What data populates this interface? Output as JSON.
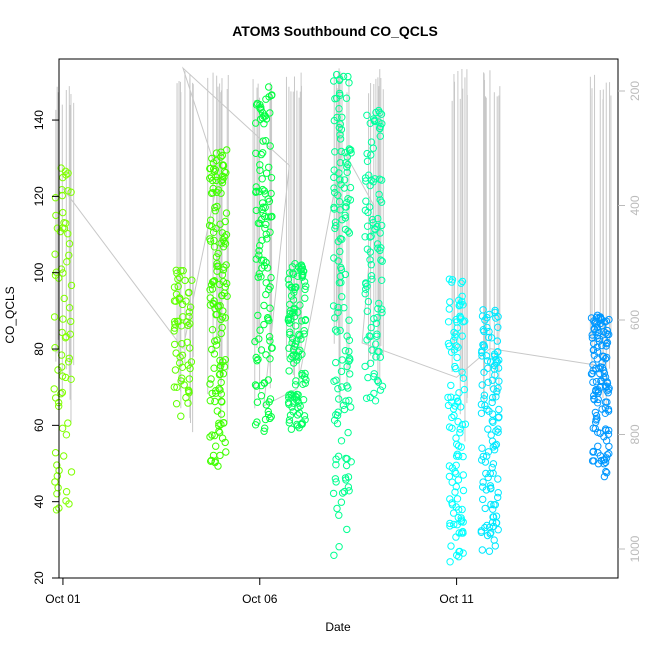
{
  "chart_data": {
    "type": "scatter",
    "title": "ATOM3 Southbound CO_QCLS",
    "xlabel": "Date",
    "ylabel": "CO_QCLS",
    "xlim": [
      -0.1,
      14.1
    ],
    "ylim": [
      20,
      156
    ],
    "x_unit": "days since Oct 01",
    "x_ticks": [
      {
        "value": 0,
        "label": "Oct 01"
      },
      {
        "value": 5,
        "label": "Oct 06"
      },
      {
        "value": 10,
        "label": "Oct 11"
      }
    ],
    "y_ticks": [
      20,
      40,
      60,
      80,
      100,
      120,
      140
    ],
    "y2_label": "",
    "y2_ticks": [
      200,
      400,
      600,
      800,
      1000
    ],
    "y2_note": "pressure axis drawn in light gray, increasing downward",
    "grid": false,
    "legend": "none",
    "point_colors": [
      "#80ff00",
      "#40ff00",
      "#00ff40",
      "#00ff80",
      "#00ffc0",
      "#00ffff",
      "#00c0ff",
      "#0090ff"
    ],
    "line_color": "#c8c8c8",
    "clusters": [
      {
        "x": 0.0,
        "y_min": 36,
        "y_max": 128,
        "n": 70,
        "color": "#80ff00",
        "y2_top": 180,
        "y2_bottom": 800
      },
      {
        "x": 3.05,
        "y_min": 62,
        "y_max": 102,
        "n": 60,
        "color": "#60ff00",
        "y2_top": 160,
        "y2_bottom": 800
      },
      {
        "x": 3.95,
        "y_min": 49,
        "y_max": 133,
        "n": 150,
        "color": "#40ff00",
        "y2_top": 160,
        "y2_bottom": 780
      },
      {
        "x": 5.1,
        "y_min": 58,
        "y_max": 149,
        "n": 120,
        "color": "#00ff40",
        "y2_top": 160,
        "y2_bottom": 770
      },
      {
        "x": 5.95,
        "y_min": 58,
        "y_max": 103,
        "n": 120,
        "color": "#00ff60",
        "y2_top": 160,
        "y2_bottom": 760
      },
      {
        "x": 7.1,
        "y_min": 25,
        "y_max": 152,
        "n": 140,
        "color": "#00ff90",
        "y2_top": 160,
        "y2_bottom": 780
      },
      {
        "x": 7.9,
        "y_min": 65,
        "y_max": 144,
        "n": 100,
        "color": "#00ffa0",
        "y2_top": 160,
        "y2_bottom": 740
      },
      {
        "x": 10.0,
        "y_min": 24,
        "y_max": 99,
        "n": 110,
        "color": "#00ffff",
        "y2_top": 160,
        "y2_bottom": 820
      },
      {
        "x": 10.85,
        "y_min": 27,
        "y_max": 91,
        "n": 120,
        "color": "#00e8ff",
        "y2_top": 160,
        "y2_bottom": 780
      },
      {
        "x": 13.65,
        "y_min": 46,
        "y_max": 89,
        "n": 130,
        "color": "#0098ff",
        "y2_top": 160,
        "y2_bottom": 770
      }
    ],
    "transit_path": [
      {
        "x": 0.0,
        "y2": 370
      },
      {
        "x": 3.05,
        "y2": 650
      },
      {
        "x": 3.95,
        "y2": 350
      },
      {
        "x": 3.05,
        "y2": 160
      },
      {
        "x": 5.75,
        "y2": 330
      },
      {
        "x": 5.1,
        "y2": 750
      },
      {
        "x": 5.95,
        "y2": 720
      },
      {
        "x": 7.1,
        "y2": 300
      },
      {
        "x": 7.9,
        "y2": 400
      },
      {
        "x": 7.6,
        "y2": 640
      },
      {
        "x": 10.0,
        "y2": 700
      },
      {
        "x": 10.85,
        "y2": 650
      },
      {
        "x": 13.65,
        "y2": 680
      }
    ]
  }
}
